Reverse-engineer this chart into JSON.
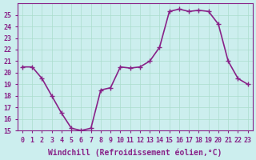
{
  "x": [
    0,
    1,
    2,
    3,
    4,
    5,
    6,
    7,
    8,
    9,
    10,
    11,
    12,
    13,
    14,
    15,
    16,
    17,
    18,
    19,
    20,
    21,
    22,
    23
  ],
  "y": [
    20.5,
    20.5,
    19.5,
    18.0,
    16.5,
    15.2,
    15.0,
    15.2,
    18.5,
    18.7,
    20.5,
    20.4,
    20.5,
    21.0,
    22.2,
    25.3,
    25.5,
    25.3,
    25.4,
    25.3,
    24.2,
    21.0,
    19.5,
    19.0
  ],
  "line_color": "#882288",
  "marker": "+",
  "markersize": 5,
  "linewidth": 1.2,
  "xlabel": "Windchill (Refroidissement éolien,°C)",
  "xlabel_fontsize": 7,
  "xlim": [
    -0.5,
    23.5
  ],
  "ylim": [
    15,
    26
  ],
  "yticks": [
    15,
    16,
    17,
    18,
    19,
    20,
    21,
    22,
    23,
    24,
    25
  ],
  "xticks": [
    0,
    1,
    2,
    3,
    4,
    5,
    6,
    7,
    8,
    9,
    10,
    11,
    12,
    13,
    14,
    15,
    16,
    17,
    18,
    19,
    20,
    21,
    22,
    23
  ],
  "xtick_labels": [
    "0",
    "1",
    "2",
    "3",
    "4",
    "5",
    "6",
    "7",
    "8",
    "9",
    "10",
    "11",
    "12",
    "13",
    "14",
    "15",
    "16",
    "17",
    "18",
    "19",
    "20",
    "21",
    "22",
    "23"
  ],
  "grid_color": "#aaddcc",
  "background_color": "#cceeee",
  "tick_fontsize": 6,
  "tick_color": "#882288",
  "spine_color": "#882288"
}
